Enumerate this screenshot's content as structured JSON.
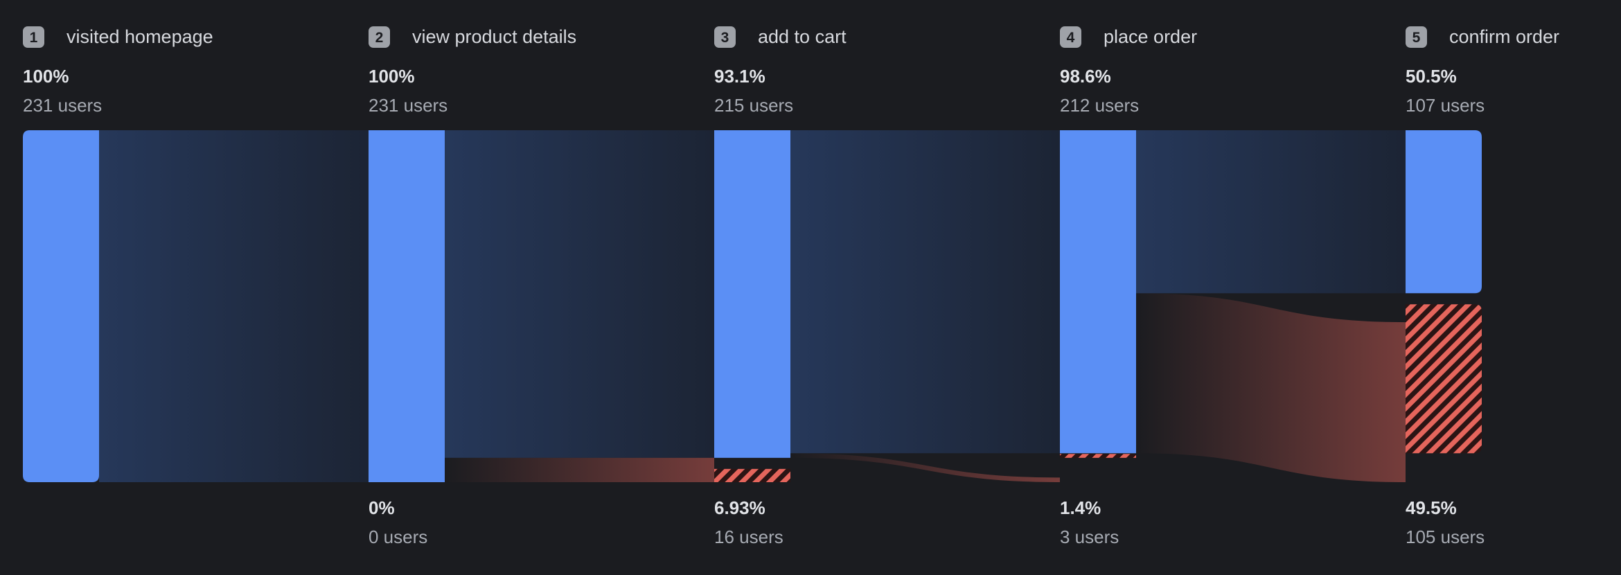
{
  "chart_data": {
    "type": "funnel",
    "users_suffix": "users",
    "steps": [
      {
        "number": "1",
        "name": "visited homepage",
        "pct": "100%",
        "users": 231,
        "drop_pct": "",
        "drop_users": 0
      },
      {
        "number": "2",
        "name": "view product details",
        "pct": "100%",
        "users": 231,
        "drop_pct": "0%",
        "drop_users": 0
      },
      {
        "number": "3",
        "name": "add to cart",
        "pct": "93.1%",
        "users": 215,
        "drop_pct": "6.93%",
        "drop_users": 16
      },
      {
        "number": "4",
        "name": "place order",
        "pct": "98.6%",
        "users": 212,
        "drop_pct": "1.4%",
        "drop_users": 3
      },
      {
        "number": "5",
        "name": "confirm order",
        "pct": "50.5%",
        "users": 107,
        "drop_pct": "49.5%",
        "drop_users": 105
      }
    ]
  },
  "colors": {
    "background": "#1b1c20",
    "bar": "#5b8ff5",
    "flow_start": "#26385a",
    "flow_end": "#1c2434",
    "drop": "#e5655c",
    "drop_dark": "#2b1414",
    "badge": "#9fa2a8"
  }
}
